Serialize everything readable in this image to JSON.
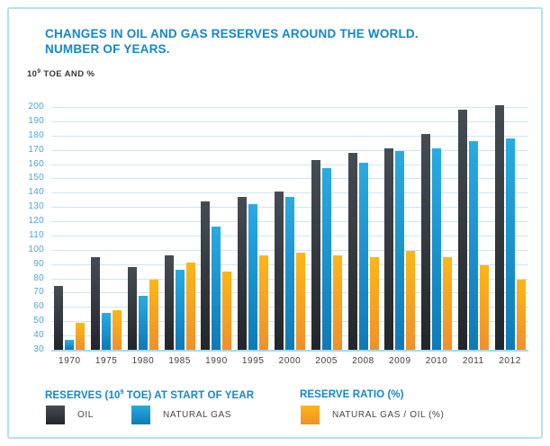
{
  "title": {
    "line1": "CHANGES IN OIL AND GAS RESERVES AROUND THE WORLD.",
    "line2": "NUMBER OF YEARS."
  },
  "unit_label": {
    "base": "10",
    "sup": "9",
    "rest": " TOE AND %"
  },
  "chart_data": {
    "type": "bar",
    "title": "CHANGES IN OIL AND GAS RESERVES AROUND THE WORLD. NUMBER OF YEARS.",
    "ylabel": "10⁹ TOE AND %",
    "ylim": [
      30,
      200
    ],
    "yticks": [
      200,
      190,
      180,
      170,
      160,
      150,
      140,
      130,
      120,
      110,
      100,
      90,
      80,
      70,
      60,
      50,
      40,
      30
    ],
    "grid": true,
    "legend_position": "bottom",
    "categories": [
      "1970",
      "1975",
      "1980",
      "1985",
      "1990",
      "1995",
      "2000",
      "2005",
      "2008",
      "2009",
      "2010",
      "2011",
      "2012"
    ],
    "series": [
      {
        "name": "OIL",
        "color": "#454c54",
        "color_bottom": "#22262a",
        "values": [
          75,
          95,
          88,
          96,
          134,
          137,
          141,
          163,
          168,
          171,
          181,
          198,
          201
        ]
      },
      {
        "name": "NATURAL GAS",
        "color": "#29abe2",
        "color_bottom": "#0e7ab8",
        "values": [
          37,
          56,
          68,
          86,
          116,
          132,
          137,
          157,
          161,
          169,
          171,
          176,
          178
        ]
      },
      {
        "name": "NATURAL GAS / OIL (%)",
        "color": "#fcb616",
        "color_bottom": "#f0902c",
        "values": [
          49,
          58,
          79,
          91,
          85,
          96,
          98,
          96,
          95,
          99,
          95,
          89,
          79
        ]
      }
    ]
  },
  "legend": {
    "reserves": {
      "heading_base": "RESERVES (10",
      "heading_sup": "9",
      "heading_rest": " TOE) AT START OF YEAR",
      "items": [
        "OIL",
        "NATURAL GAS"
      ]
    },
    "ratio": {
      "heading": "RESERVE RATIO (%)",
      "items": [
        "NATURAL GAS / OIL (%)"
      ]
    }
  },
  "colors": {
    "title_blue": "#1487c9",
    "tick_label_blue": "#4fa3d7",
    "gridline_blue": "#cbe7f7",
    "axis_baseline_blue": "#a8d8ef",
    "card_border_blue": "#b4e0f3",
    "text_dark": "#3f4144",
    "oil_bar": "#454c54",
    "natural_gas_bar": "#29abe2",
    "ratio_bar": "#fcb616"
  }
}
